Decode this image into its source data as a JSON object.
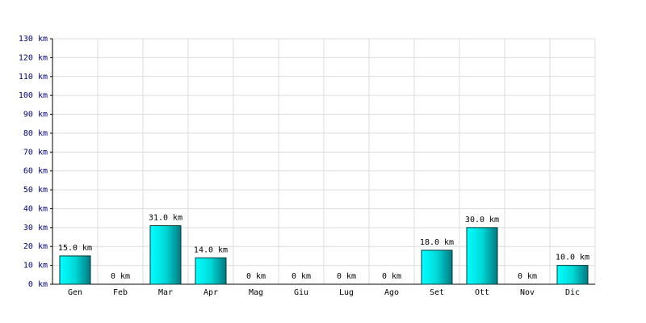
{
  "chart_data": {
    "type": "bar",
    "categories": [
      "Gen",
      "Feb",
      "Mar",
      "Apr",
      "Mag",
      "Giu",
      "Lug",
      "Ago",
      "Set",
      "Ott",
      "Nov",
      "Dic"
    ],
    "values": [
      15,
      0,
      31,
      14,
      0,
      0,
      0,
      0,
      18,
      30,
      0,
      10
    ],
    "value_labels": [
      "15.0 km",
      "0 km",
      "31.0 km",
      "14.0 km",
      "0 km",
      "0 km",
      "0 km",
      "0 km",
      "18.0 km",
      "30.0 km",
      "0 km",
      "10.0 km"
    ],
    "color": "#00d8d8",
    "ylim": [
      0,
      130
    ],
    "yticks": [
      {
        "value": 0,
        "label": "0 km"
      },
      {
        "value": 10,
        "label": "10 km"
      },
      {
        "value": 20,
        "label": "20 km"
      },
      {
        "value": 30,
        "label": "30 km"
      },
      {
        "value": 40,
        "label": "40 km"
      },
      {
        "value": 50,
        "label": "50 km"
      },
      {
        "value": 60,
        "label": "60 km"
      },
      {
        "value": 70,
        "label": "70 km"
      },
      {
        "value": 80,
        "label": "80 km"
      },
      {
        "value": 90,
        "label": "90 km"
      },
      {
        "value": 100,
        "label": "100 km"
      },
      {
        "value": 110,
        "label": "110 km"
      },
      {
        "value": 120,
        "label": "120 km"
      },
      {
        "value": 130,
        "label": "130 km"
      }
    ],
    "grid": true
  }
}
